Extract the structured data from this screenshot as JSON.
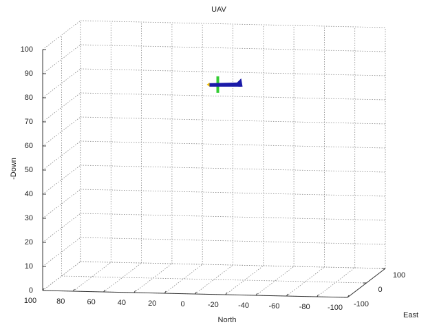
{
  "chart_data": {
    "type": "scatter3d",
    "title": "UAV",
    "xlabel": "North",
    "ylabel": "East",
    "zlabel": "-Down",
    "x": [
      -7
    ],
    "y": [
      0
    ],
    "z": [
      81
    ],
    "xlim": [
      -100,
      100
    ],
    "xdir": "reverse",
    "xticks": [
      -100,
      -80,
      -60,
      -40,
      -20,
      0,
      20,
      40,
      60,
      80,
      100
    ],
    "ylim": [
      -100,
      100
    ],
    "yticks": [
      -100,
      0,
      100
    ],
    "zlim": [
      0,
      100
    ],
    "zticks": [
      0,
      10,
      20,
      30,
      40,
      50,
      60,
      70,
      80,
      90,
      100
    ],
    "grid": true
  }
}
